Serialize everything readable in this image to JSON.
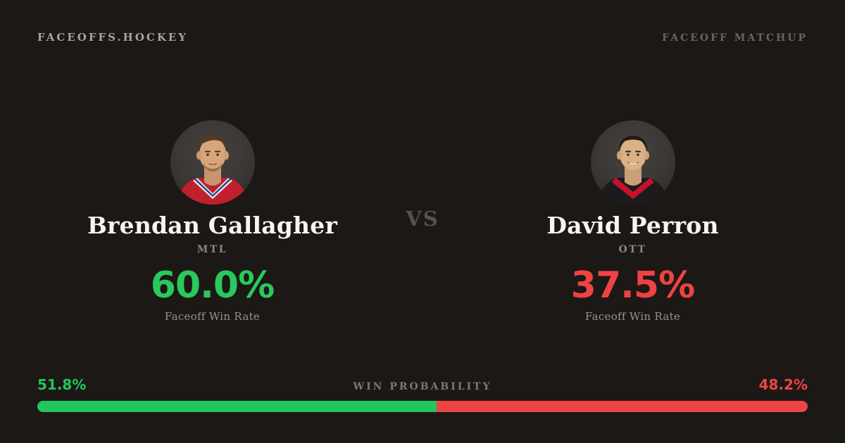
{
  "header": {
    "brand": "FACEOFFS.HOCKEY",
    "page_label": "FACEOFF MATCHUP"
  },
  "matchup": {
    "vs_label": "VS",
    "players": {
      "left": {
        "name": "Brendan Gallagher",
        "team": "MTL",
        "win_rate": "60.0%",
        "win_rate_label": "Faceoff Win Rate",
        "accent_color": "#29c95c",
        "jersey_color": "#c8102e",
        "photo_alt_icon": "player-headshot-icon"
      },
      "right": {
        "name": "David Perron",
        "team": "OTT",
        "win_rate": "37.5%",
        "win_rate_label": "Faceoff Win Rate",
        "accent_color": "#ee4343",
        "jersey_color": "#1b1b1d",
        "photo_alt_icon": "player-headshot-icon"
      }
    }
  },
  "win_probability": {
    "title": "WIN PROBABILITY",
    "left": {
      "value": "51.8%",
      "pct": 51.8,
      "color": "#22c55e"
    },
    "right": {
      "value": "48.2%",
      "pct": 48.2,
      "color": "#ef4444"
    }
  },
  "colors": {
    "background": "#1c1815",
    "name_text": "#f8f5f1",
    "muted_text": "#8d8781"
  }
}
